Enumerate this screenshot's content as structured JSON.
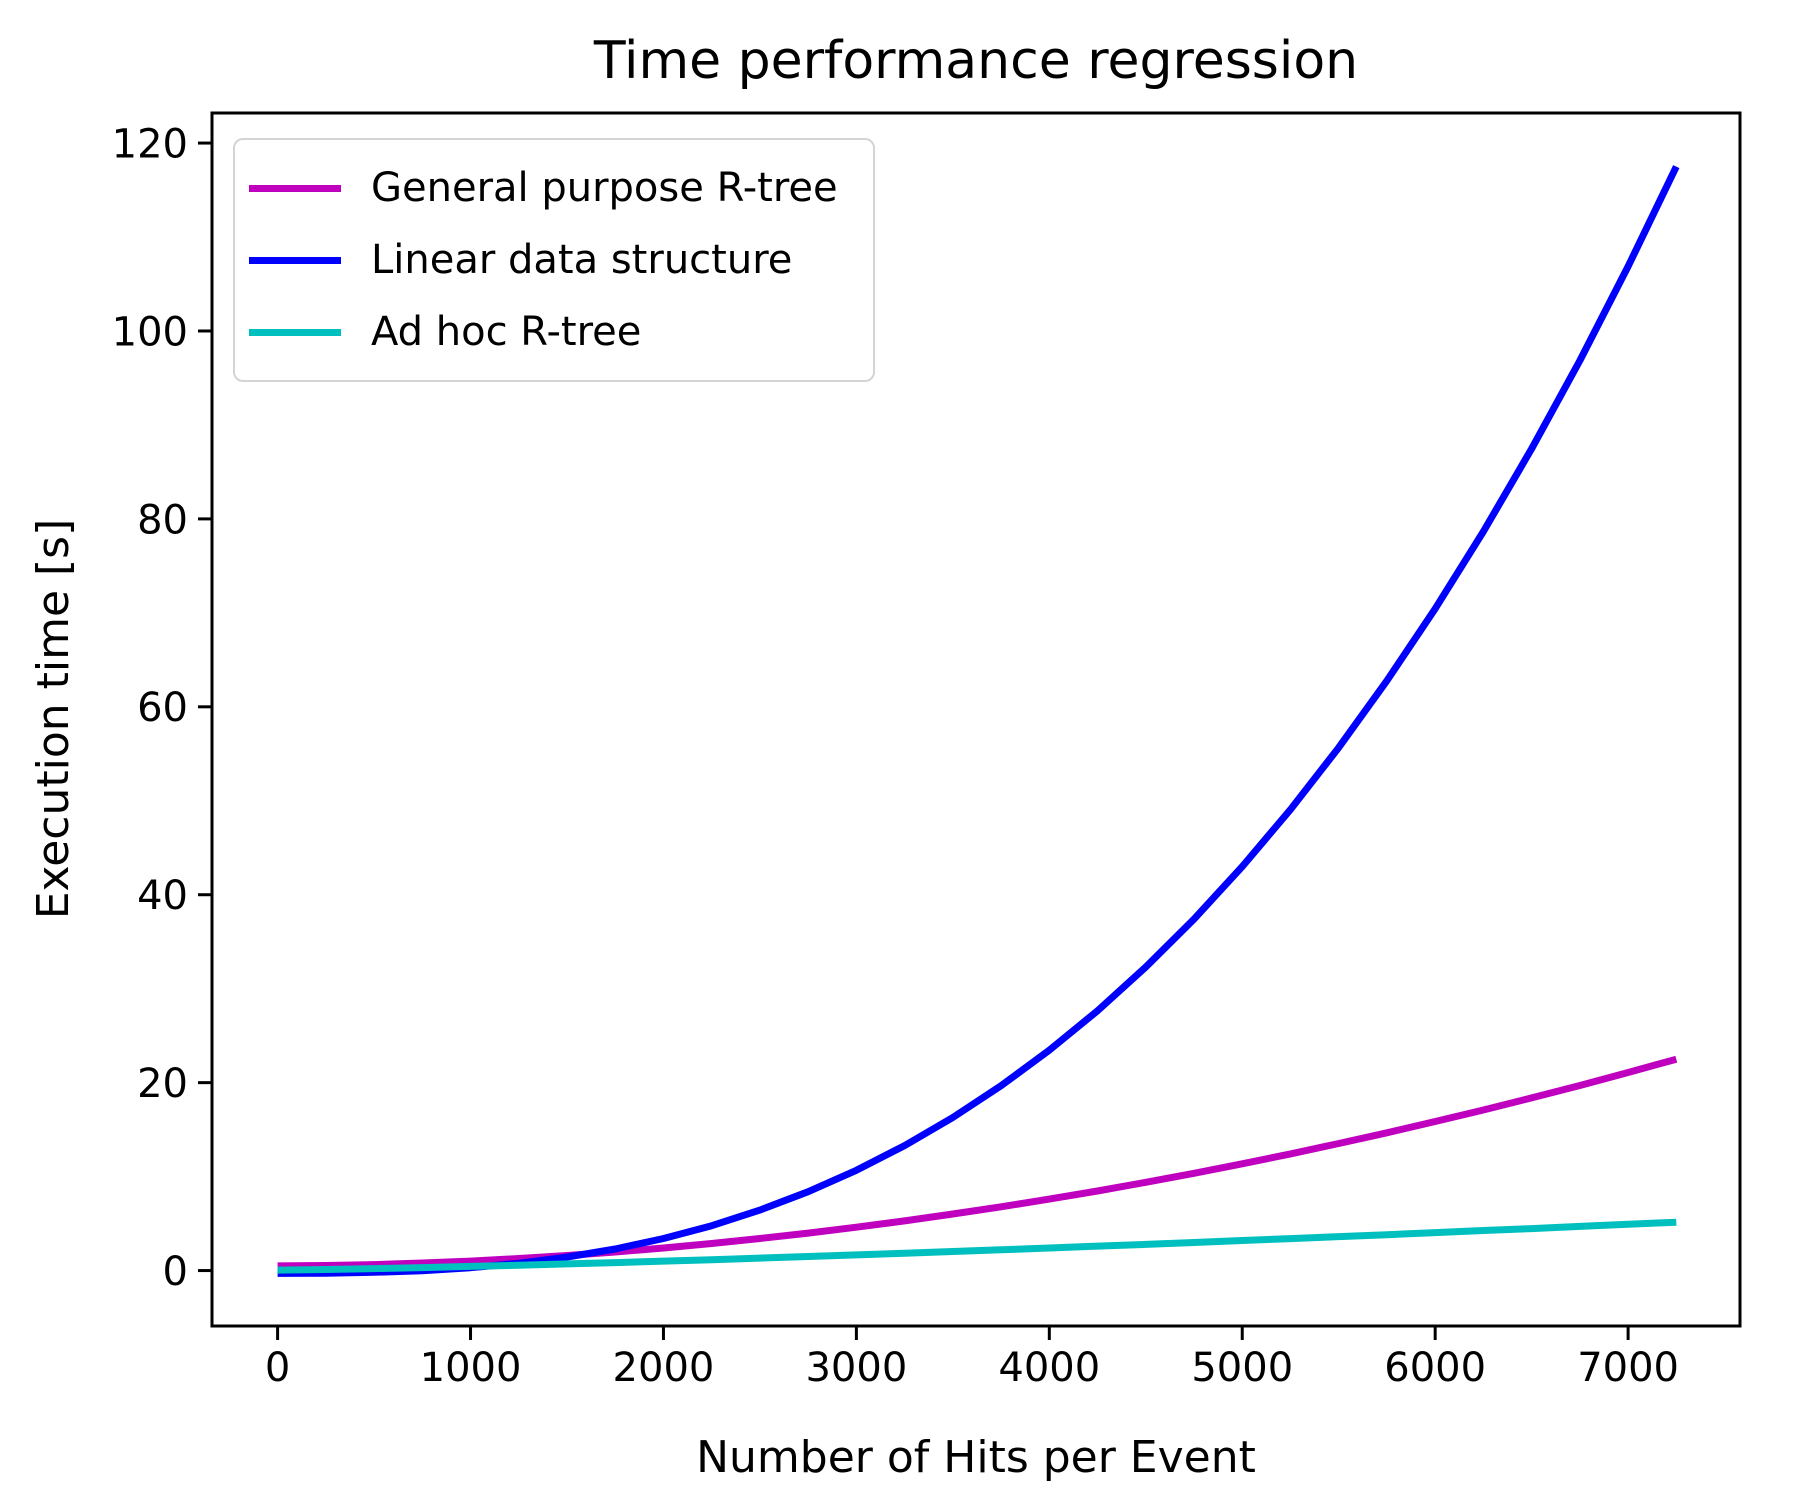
{
  "chart_data": {
    "type": "line",
    "title": "Time performance regression",
    "xlabel": "Number of Hits per Event",
    "ylabel": "Execution time [s]",
    "grid": false,
    "legend_position": "upper left",
    "xlim": [
      -340,
      7580
    ],
    "ylim": [
      -5.9,
      123.2
    ],
    "x_ticks": [
      0,
      1000,
      2000,
      3000,
      4000,
      5000,
      6000,
      7000
    ],
    "y_ticks": [
      0,
      20,
      40,
      60,
      80,
      100,
      120
    ],
    "x": [
      0,
      250,
      500,
      750,
      1000,
      1250,
      1500,
      1750,
      2000,
      2250,
      2500,
      2750,
      3000,
      3250,
      3500,
      3750,
      4000,
      4250,
      4500,
      4750,
      5000,
      5250,
      5500,
      5750,
      6000,
      6250,
      6500,
      6750,
      7000,
      7250
    ],
    "series": [
      {
        "name": "General purpose R-tree",
        "color": "#bf00bf",
        "values": [
          0.5,
          0.54,
          0.64,
          0.8,
          1.01,
          1.28,
          1.6,
          1.98,
          2.4,
          2.88,
          3.41,
          3.99,
          4.61,
          5.29,
          6.02,
          6.79,
          7.61,
          8.47,
          9.39,
          10.35,
          11.36,
          12.42,
          13.52,
          14.66,
          15.86,
          17.09,
          18.38,
          19.7,
          21.08,
          22.5
        ]
      },
      {
        "name": "Linear data structure",
        "color": "#0000ff",
        "values": [
          -0.3,
          -0.28,
          -0.19,
          -0.01,
          0.3,
          0.77,
          1.43,
          2.3,
          3.41,
          4.78,
          6.43,
          8.39,
          10.67,
          13.3,
          16.29,
          19.67,
          23.45,
          27.65,
          32.31,
          37.41,
          42.99,
          49.07,
          55.66,
          62.78,
          70.44,
          78.66,
          87.46,
          96.86,
          106.87,
          117.5
        ]
      },
      {
        "name": "Ad hoc R-tree",
        "color": "#00bfbf",
        "values": [
          0.05,
          0.11,
          0.21,
          0.32,
          0.44,
          0.57,
          0.71,
          0.85,
          1.01,
          1.16,
          1.33,
          1.5,
          1.67,
          1.85,
          2.03,
          2.21,
          2.4,
          2.6,
          2.79,
          2.99,
          3.2,
          3.4,
          3.61,
          3.82,
          4.04,
          4.26,
          4.47,
          4.7,
          4.92,
          5.15
        ]
      }
    ]
  }
}
